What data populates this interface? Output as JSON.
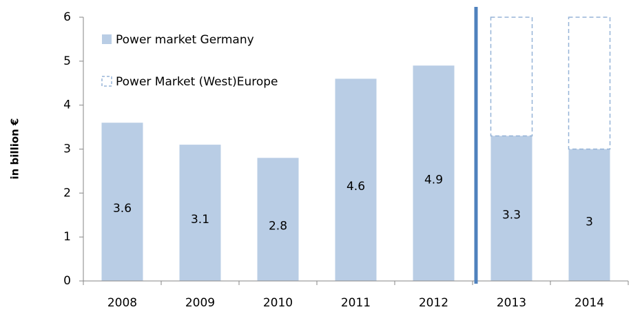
{
  "chart_data": {
    "type": "stacked-bar",
    "y_label": "in billion €",
    "categories": [
      "2008",
      "2009",
      "2010",
      "2011",
      "2012",
      "2013",
      "2014"
    ],
    "series": [
      {
        "name": "Power market Germany",
        "color": "#b9cde5",
        "values": [
          3.6,
          3.1,
          2.8,
          4.6,
          4.9,
          3.3,
          3
        ]
      },
      {
        "name": "Power Market (West)Europe",
        "color": "#95b3d7",
        "values": [
          null,
          null,
          null,
          null,
          null,
          2.7,
          3
        ]
      }
    ],
    "ylim": [
      0,
      6
    ],
    "yticks": [
      0,
      1,
      2,
      3,
      4,
      5,
      6
    ],
    "grid": false
  }
}
